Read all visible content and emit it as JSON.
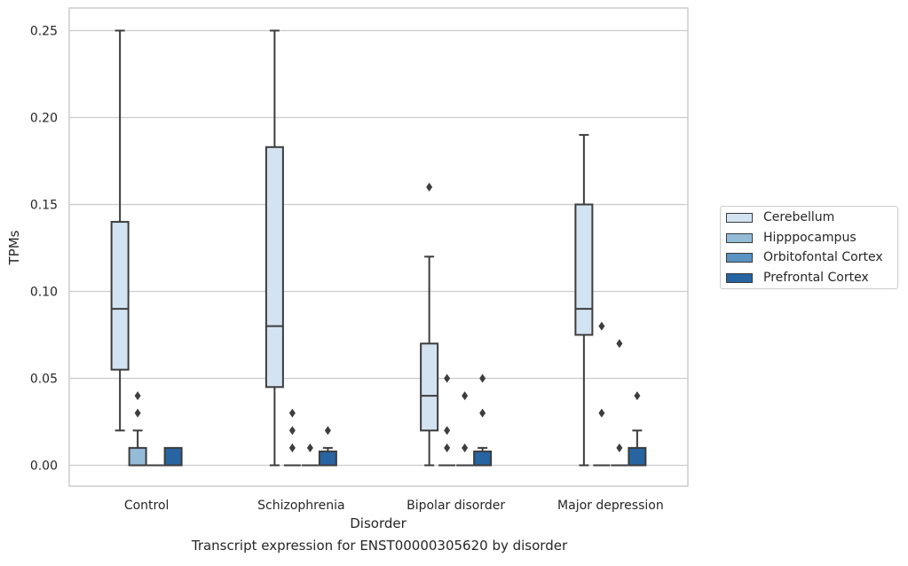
{
  "caption": "Transcript expression for ENST00000305620 by disorder",
  "chart_data": {
    "type": "box",
    "xlabel": "Disorder",
    "ylabel": "TPMs",
    "ylim": [
      -0.012,
      0.263
    ],
    "yticks": [
      0.0,
      0.05,
      0.1,
      0.15,
      0.2,
      0.25
    ],
    "ytick_labels": [
      "0.00",
      "0.05",
      "0.10",
      "0.15",
      "0.20",
      "0.25"
    ],
    "grid": true,
    "legend_position": "right",
    "categories": [
      "Control",
      "Schizophrenia",
      "Bipolar disorder",
      "Major depression"
    ],
    "series": [
      {
        "name": "Cerebellum",
        "color": "#d4e3f2",
        "boxes": [
          {
            "min": 0.02,
            "q1": 0.055,
            "median": 0.09,
            "q3": 0.14,
            "max": 0.25,
            "outliers": []
          },
          {
            "min": 0.0,
            "q1": 0.045,
            "median": 0.08,
            "q3": 0.183,
            "max": 0.25,
            "outliers": []
          },
          {
            "min": 0.0,
            "q1": 0.02,
            "median": 0.04,
            "q3": 0.07,
            "max": 0.12,
            "outliers": [
              0.16
            ]
          },
          {
            "min": 0.0,
            "q1": 0.075,
            "median": 0.09,
            "q3": 0.15,
            "max": 0.19,
            "outliers": []
          }
        ]
      },
      {
        "name": "Hipppocampus",
        "color": "#94bcd9",
        "boxes": [
          {
            "min": 0.0,
            "q1": 0.0,
            "median": 0.0,
            "q3": 0.01,
            "max": 0.02,
            "outliers": [
              0.03,
              0.04
            ]
          },
          {
            "min": 0.0,
            "q1": 0.0,
            "median": 0.0,
            "q3": 0.0,
            "max": 0.0,
            "outliers": [
              0.01,
              0.02,
              0.03
            ]
          },
          {
            "min": 0.0,
            "q1": 0.0,
            "median": 0.0,
            "q3": 0.0,
            "max": 0.0,
            "outliers": [
              0.01,
              0.02,
              0.05
            ]
          },
          {
            "min": 0.0,
            "q1": 0.0,
            "median": 0.0,
            "q3": 0.0,
            "max": 0.0,
            "outliers": [
              0.03,
              0.08
            ]
          }
        ]
      },
      {
        "name": "Orbitofontal Cortex",
        "color": "#5a92c3",
        "boxes": [
          {
            "min": 0.0,
            "q1": 0.0,
            "median": 0.0,
            "q3": 0.0,
            "max": 0.0,
            "outliers": []
          },
          {
            "min": 0.0,
            "q1": 0.0,
            "median": 0.0,
            "q3": 0.0,
            "max": 0.0,
            "outliers": [
              0.01
            ]
          },
          {
            "min": 0.0,
            "q1": 0.0,
            "median": 0.0,
            "q3": 0.0,
            "max": 0.0,
            "outliers": [
              0.01,
              0.04
            ]
          },
          {
            "min": 0.0,
            "q1": 0.0,
            "median": 0.0,
            "q3": 0.0,
            "max": 0.0,
            "outliers": [
              0.01,
              0.07
            ]
          }
        ]
      },
      {
        "name": "Prefrontal Cortex",
        "color": "#2664a2",
        "boxes": [
          {
            "min": 0.0,
            "q1": 0.0,
            "median": 0.0,
            "q3": 0.01,
            "max": 0.01,
            "outliers": []
          },
          {
            "min": 0.0,
            "q1": 0.0,
            "median": 0.0,
            "q3": 0.008,
            "max": 0.01,
            "outliers": [
              0.02
            ]
          },
          {
            "min": 0.0,
            "q1": 0.0,
            "median": 0.0,
            "q3": 0.008,
            "max": 0.01,
            "outliers": [
              0.03,
              0.05
            ]
          },
          {
            "min": 0.0,
            "q1": 0.0,
            "median": 0.0,
            "q3": 0.01,
            "max": 0.02,
            "outliers": [
              0.04
            ]
          }
        ]
      }
    ]
  }
}
